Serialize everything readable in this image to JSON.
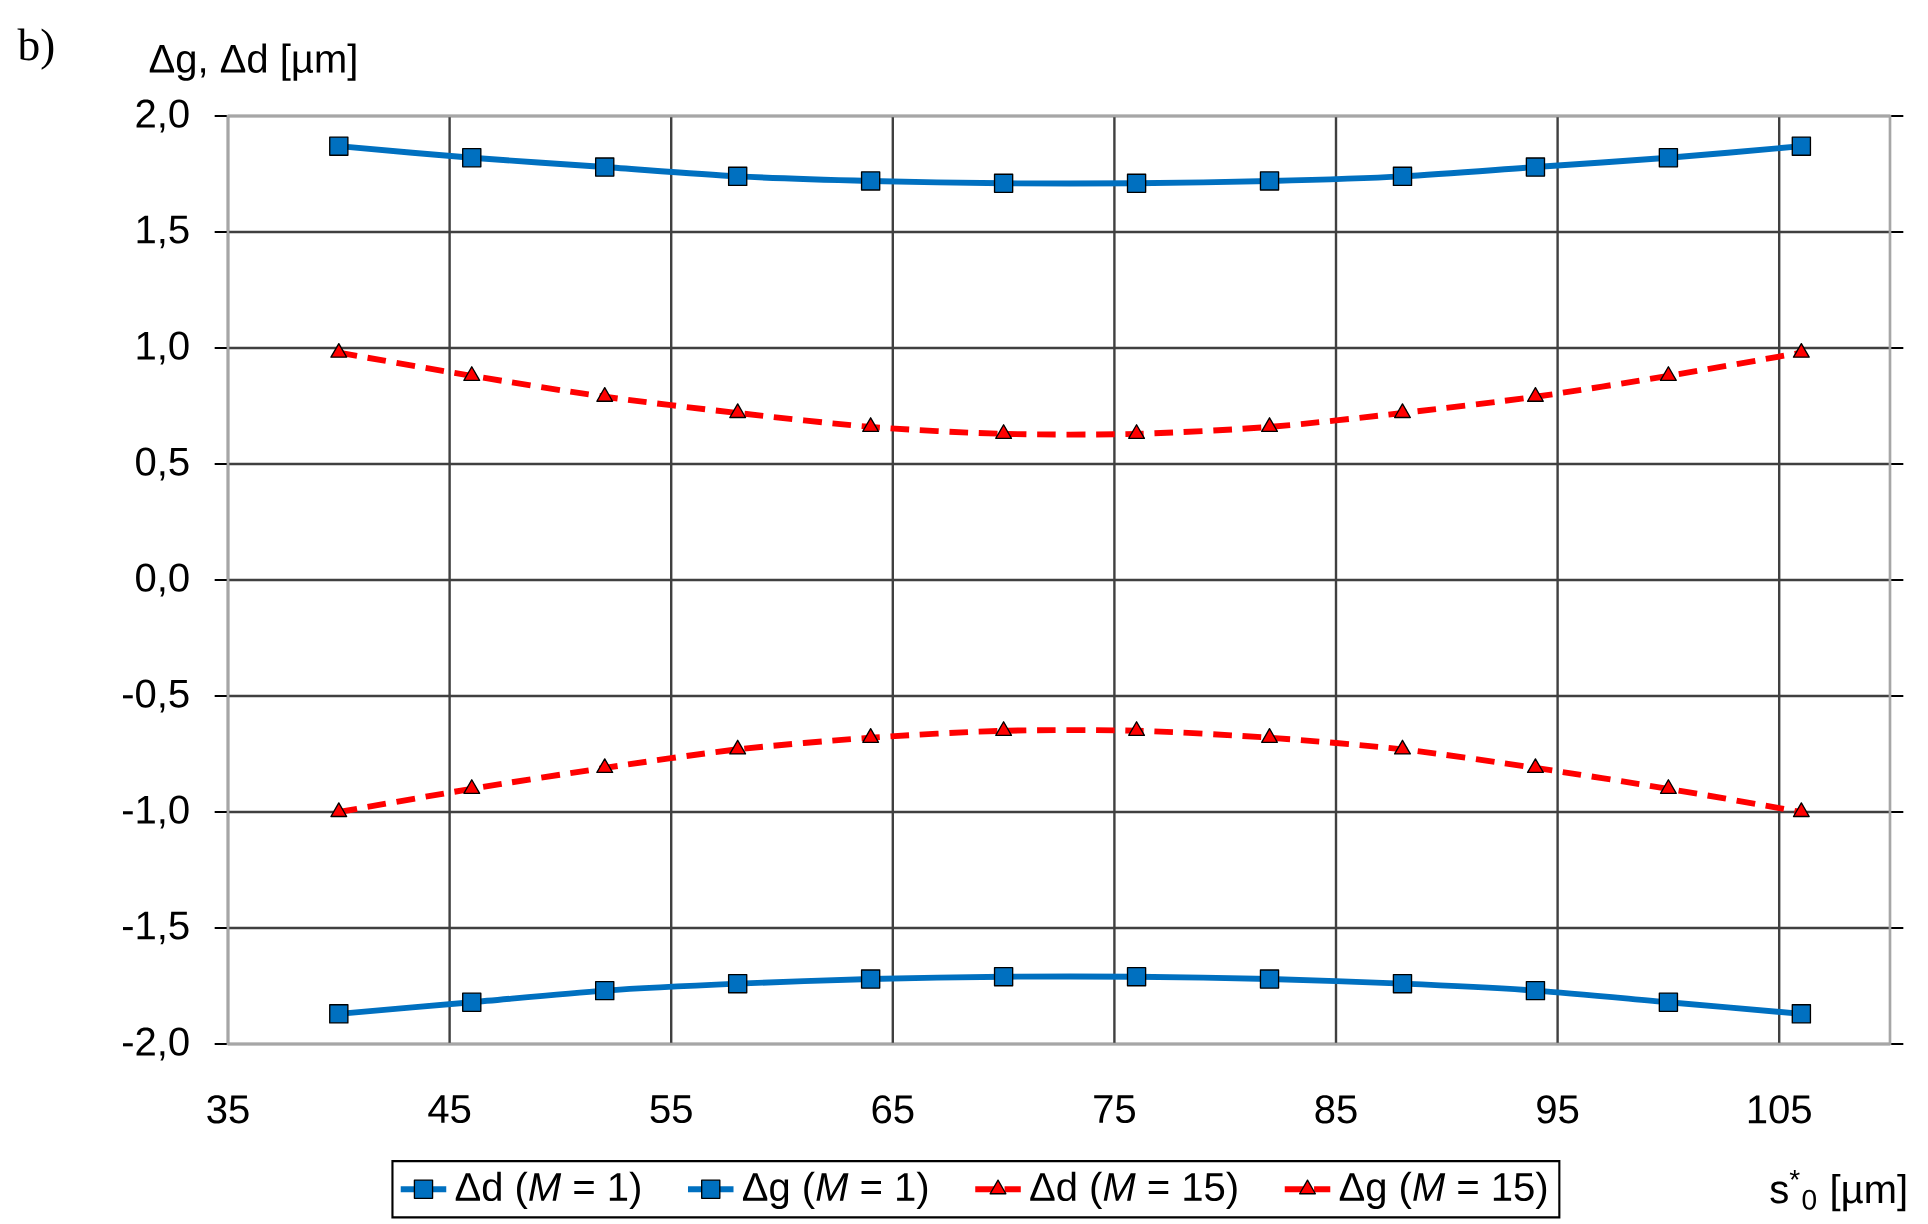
{
  "chart_data": {
    "type": "line",
    "annotations": [
      "b)"
    ],
    "xlabel": "s$^{*}$$_{0}$ [µm]",
    "ylabel": "Δg, Δd [µm]",
    "x": [
      40,
      46,
      52,
      58,
      64,
      70,
      76,
      82,
      88,
      94,
      100,
      106
    ],
    "xlim": [
      35,
      110
    ],
    "xticks": [
      35,
      45,
      55,
      65,
      75,
      85,
      95,
      105
    ],
    "ylim": [
      -2,
      2
    ],
    "yticks": [
      {
        "value": -2,
        "label": "-2,0"
      },
      {
        "value": -1.5,
        "label": "-1,5"
      },
      {
        "value": -1,
        "label": "-1,0"
      },
      {
        "value": -0.5,
        "label": "-0,5"
      },
      {
        "value": 0,
        "label": "0,0"
      },
      {
        "value": 0.5,
        "label": "0,5"
      },
      {
        "value": 1,
        "label": "1,0"
      },
      {
        "value": 1.5,
        "label": "1,5"
      },
      {
        "value": 2,
        "label": "2,0"
      }
    ],
    "grid": true,
    "legend": "bottom",
    "series": [
      {
        "name": "Δd (*M* = 1)",
        "color": "#0070c0",
        "marker": "square",
        "line_style": "solid",
        "values": [
          -1.87,
          -1.82,
          -1.77,
          -1.74,
          -1.72,
          -1.71,
          -1.71,
          -1.72,
          -1.74,
          -1.77,
          -1.82,
          -1.87
        ]
      },
      {
        "name": "Δg (*M* = 1)",
        "color": "#0070c0",
        "marker": "square",
        "line_style": "solid",
        "values": [
          1.87,
          1.82,
          1.78,
          1.74,
          1.72,
          1.71,
          1.71,
          1.72,
          1.74,
          1.78,
          1.82,
          1.87
        ]
      },
      {
        "name": "Δd (*M* = 15)",
        "color": "#ff0000",
        "marker": "triangle",
        "line_style": "dashed",
        "values": [
          -1.0,
          -0.9,
          -0.81,
          -0.73,
          -0.68,
          -0.65,
          -0.65,
          -0.68,
          -0.73,
          -0.81,
          -0.9,
          -1.0
        ]
      },
      {
        "name": "Δg (*M* = 15)",
        "color": "#ff0000",
        "marker": "triangle",
        "line_style": "dashed",
        "values": [
          0.98,
          0.88,
          0.79,
          0.72,
          0.66,
          0.63,
          0.63,
          0.66,
          0.72,
          0.79,
          0.88,
          0.98
        ]
      }
    ]
  }
}
